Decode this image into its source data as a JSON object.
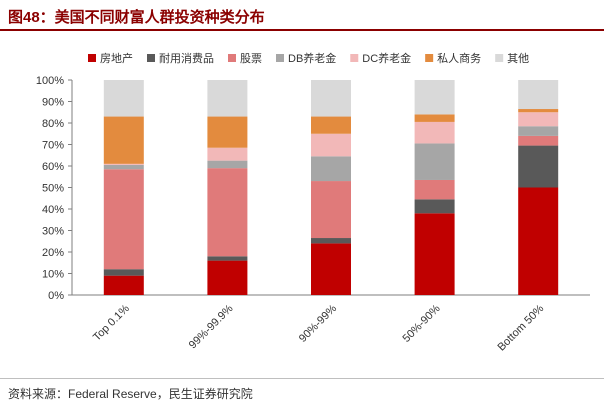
{
  "title": "图48：美国不同财富人群投资种类分布",
  "source": "资料来源：Federal Reserve，民生证券研究院",
  "chart_data": {
    "type": "bar",
    "stacked": true,
    "title": "",
    "xlabel": "",
    "ylabel": "",
    "ylim": [
      0,
      100
    ],
    "yticks": [
      "0%",
      "10%",
      "20%",
      "30%",
      "40%",
      "50%",
      "60%",
      "70%",
      "80%",
      "90%",
      "100%"
    ],
    "grid": false,
    "legend_position": "top",
    "categories": [
      "Top 0.1%",
      "99%-99.9%",
      "90%-99%",
      "50%-90%",
      "Bottom 50%"
    ],
    "series": [
      {
        "name": "房地产",
        "color": "#c00000",
        "values": [
          9,
          16,
          24,
          38,
          50
        ]
      },
      {
        "name": "耐用消费品",
        "color": "#595959",
        "values": [
          3,
          2,
          2.5,
          6.5,
          19.5
        ]
      },
      {
        "name": "股票",
        "color": "#e07a7a",
        "values": [
          46.5,
          41,
          26.5,
          9,
          4.5
        ]
      },
      {
        "name": "DB养老金",
        "color": "#a6a6a6",
        "values": [
          2,
          3.5,
          11.5,
          17,
          4.5
        ]
      },
      {
        "name": "DC养老金",
        "color": "#f2b8b8",
        "values": [
          0.5,
          6,
          10.5,
          10,
          6.5
        ]
      },
      {
        "name": "私人商务",
        "color": "#e38b3e",
        "values": [
          22,
          14.5,
          8,
          3.5,
          1.5
        ]
      },
      {
        "name": "其他",
        "color": "#d9d9d9",
        "values": [
          17,
          17,
          17,
          16,
          13.5
        ]
      }
    ]
  }
}
